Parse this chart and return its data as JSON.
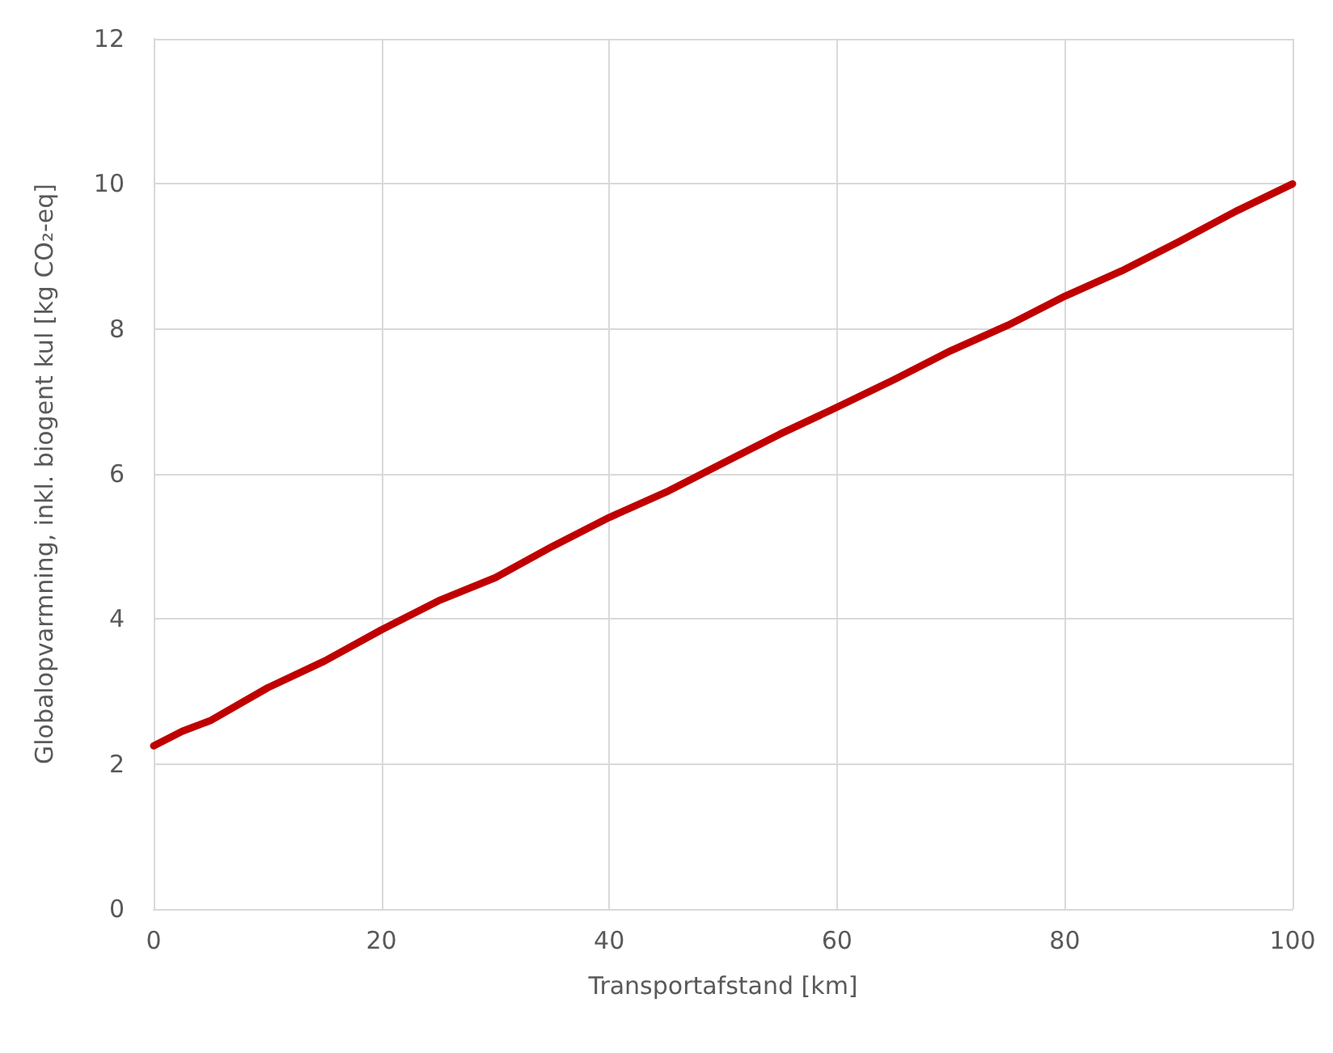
{
  "chart_data": {
    "type": "line",
    "xlabel": "Transportafstand [km]",
    "ylabel": "Globalopvarmning, inkl. biogent kul [kg CO₂-eq]",
    "x": [
      0,
      2.5,
      5,
      10,
      15,
      20,
      25,
      30,
      35,
      40,
      45,
      50,
      55,
      60,
      65,
      70,
      75,
      80,
      85,
      90,
      95,
      100
    ],
    "series": [
      {
        "color": "#c00000",
        "values": [
          2.25,
          2.45,
          2.6,
          3.05,
          3.42,
          3.85,
          4.25,
          4.57,
          5.0,
          5.4,
          5.75,
          6.15,
          6.55,
          6.92,
          7.3,
          7.7,
          8.05,
          8.45,
          8.8,
          9.2,
          9.62,
          10.0
        ]
      }
    ],
    "xlim": [
      0,
      100
    ],
    "xticks": [
      0,
      20,
      40,
      60,
      80,
      100
    ],
    "ylim": [
      0,
      12
    ],
    "yticks": [
      0,
      2,
      4,
      6,
      8,
      10,
      12
    ],
    "grid": true,
    "marker": "none",
    "line_style": "solid"
  }
}
